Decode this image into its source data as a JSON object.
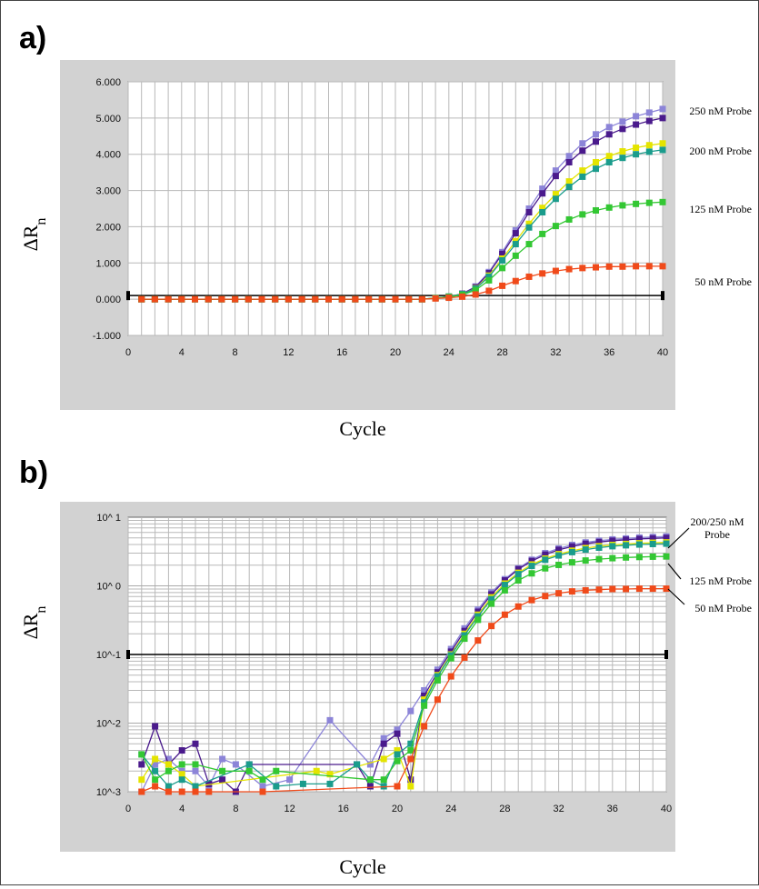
{
  "chart_data": [
    {
      "panel": "a)",
      "type": "line",
      "xlabel": "Cycle",
      "ylabel": "ΔRn",
      "xlim": [
        0,
        40
      ],
      "ylim": [
        -1,
        6
      ],
      "yscale": "linear",
      "xticks": [
        "0",
        "4",
        "8",
        "12",
        "16",
        "20",
        "24",
        "28",
        "32",
        "36",
        "40"
      ],
      "yticks": [
        "-1.000",
        "0.000",
        "1.000",
        "2.000",
        "3.000",
        "4.000",
        "5.000",
        "6.000"
      ],
      "threshold": 0.1,
      "grid": true,
      "colors": {
        "plot_bg": "#ffffff",
        "frame_bg": "#d2d2d2",
        "grid": "#b8b8b8"
      },
      "x": [
        1,
        2,
        3,
        4,
        5,
        6,
        7,
        8,
        9,
        10,
        11,
        12,
        13,
        14,
        15,
        16,
        17,
        18,
        19,
        20,
        21,
        22,
        23,
        24,
        25,
        26,
        27,
        28,
        29,
        30,
        31,
        32,
        33,
        34,
        35,
        36,
        37,
        38,
        39,
        40
      ],
      "series": [
        {
          "name": "250 nM Probe",
          "color": "#8c84d8",
          "values": [
            0,
            0,
            0,
            0,
            0,
            0,
            0,
            0,
            0,
            0,
            0,
            0,
            0,
            0,
            0,
            0,
            0,
            0,
            0,
            0,
            0,
            0,
            0.03,
            0.07,
            0.15,
            0.35,
            0.75,
            1.3,
            1.9,
            2.5,
            3.05,
            3.55,
            3.95,
            4.3,
            4.55,
            4.75,
            4.9,
            5.05,
            5.15,
            5.25
          ]
        },
        {
          "name": "",
          "color": "#4a1a8c",
          "values": [
            0,
            0,
            0,
            0,
            0,
            0,
            0,
            0,
            0,
            0,
            0,
            0,
            0,
            0,
            0,
            0,
            0,
            0,
            0,
            0,
            0,
            0,
            0.03,
            0.07,
            0.15,
            0.33,
            0.72,
            1.25,
            1.82,
            2.4,
            2.92,
            3.4,
            3.78,
            4.1,
            4.35,
            4.55,
            4.7,
            4.82,
            4.92,
            5.0
          ]
        },
        {
          "name": "200 nM Probe",
          "color": "#e4e400",
          "values": [
            0,
            0,
            0,
            0,
            0,
            0,
            0,
            0,
            0,
            0,
            0,
            0,
            0,
            0,
            0,
            0,
            0,
            0,
            0,
            0,
            0,
            0,
            0.03,
            0.07,
            0.14,
            0.3,
            0.65,
            1.12,
            1.6,
            2.08,
            2.52,
            2.9,
            3.25,
            3.55,
            3.78,
            3.95,
            4.08,
            4.18,
            4.25,
            4.3
          ]
        },
        {
          "name": "",
          "color": "#1a9c8c",
          "values": [
            0,
            0,
            0,
            0,
            0,
            0,
            0,
            0,
            0,
            0,
            0,
            0,
            0,
            0,
            0,
            0,
            0,
            0,
            0,
            0,
            0,
            0,
            0.03,
            0.07,
            0.14,
            0.29,
            0.62,
            1.07,
            1.52,
            1.98,
            2.4,
            2.77,
            3.1,
            3.38,
            3.6,
            3.78,
            3.9,
            4.0,
            4.07,
            4.12
          ]
        },
        {
          "name": "125 nM Probe",
          "color": "#33c733",
          "values": [
            0,
            0,
            0,
            0,
            0,
            0,
            0,
            0,
            0,
            0,
            0,
            0,
            0,
            0,
            0,
            0,
            0,
            0,
            0,
            0,
            0,
            0,
            0.03,
            0.06,
            0.12,
            0.25,
            0.52,
            0.86,
            1.2,
            1.52,
            1.8,
            2.02,
            2.2,
            2.34,
            2.45,
            2.53,
            2.59,
            2.63,
            2.66,
            2.68
          ]
        },
        {
          "name": "50 nM Probe",
          "color": "#f04a1a",
          "values": [
            0,
            0,
            0,
            0,
            0,
            0,
            0,
            0,
            0,
            0,
            0,
            0,
            0,
            0,
            0,
            0,
            0,
            0,
            0,
            0,
            0,
            0,
            0.02,
            0.04,
            0.07,
            0.13,
            0.23,
            0.37,
            0.5,
            0.62,
            0.71,
            0.78,
            0.83,
            0.86,
            0.88,
            0.9,
            0.9,
            0.91,
            0.91,
            0.91
          ]
        }
      ]
    },
    {
      "panel": "b)",
      "type": "line",
      "xlabel": "Cycle",
      "ylabel": "ΔRn",
      "xlim": [
        0,
        40
      ],
      "ylim": [
        0.001,
        10
      ],
      "yscale": "log",
      "xticks": [
        "0",
        "4",
        "8",
        "12",
        "16",
        "20",
        "24",
        "28",
        "32",
        "36",
        "40"
      ],
      "yticks": [
        "10^-3",
        "10^-2",
        "10^-1",
        "10^ 0",
        "10^ 1"
      ],
      "threshold": 0.1,
      "grid": true,
      "colors": {
        "plot_bg": "#ffffff",
        "frame_bg": "#d2d2d2",
        "grid": "#b8b8b8"
      },
      "labels": [
        {
          "text": "200/250 nM",
          "text2": "Probe"
        },
        {
          "text": "125 nM Probe"
        },
        {
          "text": "50 nM Probe"
        }
      ],
      "series": [
        {
          "name": "",
          "color": "#8c84d8",
          "points": [
            [
              1,
              0.001
            ],
            [
              2,
              0.0025
            ],
            [
              3,
              0.003
            ],
            [
              4,
              0.002
            ],
            [
              5,
              0.002
            ],
            [
              6,
              0.0012
            ],
            [
              7,
              0.003
            ],
            [
              8,
              0.0025
            ],
            [
              10,
              0.0012
            ],
            [
              12,
              0.0015
            ],
            [
              15,
              0.011
            ],
            [
              18,
              0.0025
            ],
            [
              19,
              0.006
            ],
            [
              20,
              0.008
            ],
            [
              21,
              0.015
            ],
            [
              22,
              0.03
            ],
            [
              23,
              0.06
            ],
            [
              24,
              0.12
            ],
            [
              25,
              0.24
            ],
            [
              26,
              0.45
            ],
            [
              27,
              0.8
            ],
            [
              28,
              1.25
            ],
            [
              29,
              1.8
            ],
            [
              30,
              2.4
            ],
            [
              31,
              3.0
            ],
            [
              32,
              3.5
            ],
            [
              33,
              3.95
            ],
            [
              34,
              4.3
            ],
            [
              35,
              4.55
            ],
            [
              36,
              4.75
            ],
            [
              37,
              4.9
            ],
            [
              38,
              5.05
            ],
            [
              39,
              5.15
            ],
            [
              40,
              5.25
            ]
          ]
        },
        {
          "name": "",
          "color": "#4a1a8c",
          "points": [
            [
              1,
              0.0025
            ],
            [
              2,
              0.009
            ],
            [
              3,
              0.0025
            ],
            [
              4,
              0.004
            ],
            [
              5,
              0.005
            ],
            [
              6,
              0.0013
            ],
            [
              7,
              0.0015
            ],
            [
              8,
              0.001
            ],
            [
              9,
              0.0025
            ],
            [
              17,
              0.0025
            ],
            [
              18,
              0.0012
            ],
            [
              19,
              0.005
            ],
            [
              20,
              0.007
            ],
            [
              21,
              0.0015
            ],
            [
              22,
              0.025
            ],
            [
              23,
              0.055
            ],
            [
              24,
              0.11
            ],
            [
              25,
              0.22
            ],
            [
              26,
              0.42
            ],
            [
              27,
              0.75
            ],
            [
              28,
              1.2
            ],
            [
              29,
              1.75
            ],
            [
              30,
              2.3
            ],
            [
              31,
              2.85
            ],
            [
              32,
              3.35
            ],
            [
              33,
              3.75
            ],
            [
              34,
              4.1
            ],
            [
              35,
              4.35
            ],
            [
              36,
              4.55
            ],
            [
              37,
              4.7
            ],
            [
              38,
              4.82
            ],
            [
              39,
              4.92
            ],
            [
              40,
              5.0
            ]
          ]
        },
        {
          "name": "",
          "color": "#e4e400",
          "points": [
            [
              1,
              0.0015
            ],
            [
              2,
              0.003
            ],
            [
              3,
              0.0025
            ],
            [
              4,
              0.0018
            ],
            [
              5,
              0.0012
            ],
            [
              14,
              0.002
            ],
            [
              15,
              0.0018
            ],
            [
              19,
              0.003
            ],
            [
              20,
              0.004
            ],
            [
              21,
              0.0012
            ],
            [
              22,
              0.022
            ],
            [
              23,
              0.05
            ],
            [
              24,
              0.1
            ],
            [
              25,
              0.2
            ],
            [
              26,
              0.38
            ],
            [
              27,
              0.68
            ],
            [
              28,
              1.08
            ],
            [
              29,
              1.55
            ],
            [
              30,
              2.05
            ],
            [
              31,
              2.5
            ],
            [
              32,
              2.9
            ],
            [
              33,
              3.25
            ],
            [
              34,
              3.55
            ],
            [
              35,
              3.78
            ],
            [
              36,
              3.95
            ],
            [
              37,
              4.08
            ],
            [
              38,
              4.18
            ],
            [
              39,
              4.25
            ],
            [
              40,
              4.3
            ]
          ]
        },
        {
          "name": "",
          "color": "#1a9c8c",
          "points": [
            [
              1,
              0.0035
            ],
            [
              2,
              0.002
            ],
            [
              3,
              0.0012
            ],
            [
              4,
              0.0015
            ],
            [
              5,
              0.0012
            ],
            [
              9,
              0.0025
            ],
            [
              11,
              0.0012
            ],
            [
              13,
              0.0013
            ],
            [
              15,
              0.0013
            ],
            [
              17,
              0.0025
            ],
            [
              18,
              0.0015
            ],
            [
              19,
              0.0012
            ],
            [
              20,
              0.0035
            ],
            [
              21,
              0.005
            ],
            [
              22,
              0.02
            ],
            [
              23,
              0.048
            ],
            [
              24,
              0.097
            ],
            [
              25,
              0.19
            ],
            [
              26,
              0.36
            ],
            [
              27,
              0.64
            ],
            [
              28,
              1.03
            ],
            [
              29,
              1.48
            ],
            [
              30,
              1.95
            ],
            [
              31,
              2.4
            ],
            [
              32,
              2.77
            ],
            [
              33,
              3.1
            ],
            [
              34,
              3.38
            ],
            [
              35,
              3.6
            ],
            [
              36,
              3.78
            ],
            [
              37,
              3.9
            ],
            [
              38,
              4.0
            ],
            [
              39,
              4.07
            ],
            [
              40,
              4.12
            ]
          ]
        },
        {
          "name": "",
          "color": "#33c733",
          "points": [
            [
              1,
              0.0035
            ],
            [
              2,
              0.0015
            ],
            [
              3,
              0.002
            ],
            [
              4,
              0.0025
            ],
            [
              5,
              0.0025
            ],
            [
              7,
              0.002
            ],
            [
              9,
              0.002
            ],
            [
              10,
              0.0015
            ],
            [
              11,
              0.002
            ],
            [
              18,
              0.0015
            ],
            [
              19,
              0.0015
            ],
            [
              20,
              0.0028
            ],
            [
              21,
              0.004
            ],
            [
              22,
              0.018
            ],
            [
              23,
              0.042
            ],
            [
              24,
              0.088
            ],
            [
              25,
              0.17
            ],
            [
              26,
              0.32
            ],
            [
              27,
              0.55
            ],
            [
              28,
              0.86
            ],
            [
              29,
              1.2
            ],
            [
              30,
              1.52
            ],
            [
              31,
              1.8
            ],
            [
              32,
              2.02
            ],
            [
              33,
              2.2
            ],
            [
              34,
              2.34
            ],
            [
              35,
              2.45
            ],
            [
              36,
              2.53
            ],
            [
              37,
              2.59
            ],
            [
              38,
              2.63
            ],
            [
              39,
              2.66
            ],
            [
              40,
              2.68
            ]
          ]
        },
        {
          "name": "",
          "color": "#f04a1a",
          "points": [
            [
              1,
              0.001
            ],
            [
              2,
              0.0012
            ],
            [
              3,
              0.001
            ],
            [
              4,
              0.001
            ],
            [
              5,
              0.001
            ],
            [
              6,
              0.001
            ],
            [
              10,
              0.001
            ],
            [
              20,
              0.0012
            ],
            [
              21,
              0.003
            ],
            [
              22,
              0.009
            ],
            [
              23,
              0.022
            ],
            [
              24,
              0.048
            ],
            [
              25,
              0.09
            ],
            [
              26,
              0.16
            ],
            [
              27,
              0.26
            ],
            [
              28,
              0.38
            ],
            [
              29,
              0.5
            ],
            [
              30,
              0.62
            ],
            [
              31,
              0.71
            ],
            [
              32,
              0.78
            ],
            [
              33,
              0.83
            ],
            [
              34,
              0.86
            ],
            [
              35,
              0.88
            ],
            [
              36,
              0.9
            ],
            [
              37,
              0.9
            ],
            [
              38,
              0.91
            ],
            [
              39,
              0.91
            ],
            [
              40,
              0.91
            ]
          ]
        }
      ]
    }
  ]
}
